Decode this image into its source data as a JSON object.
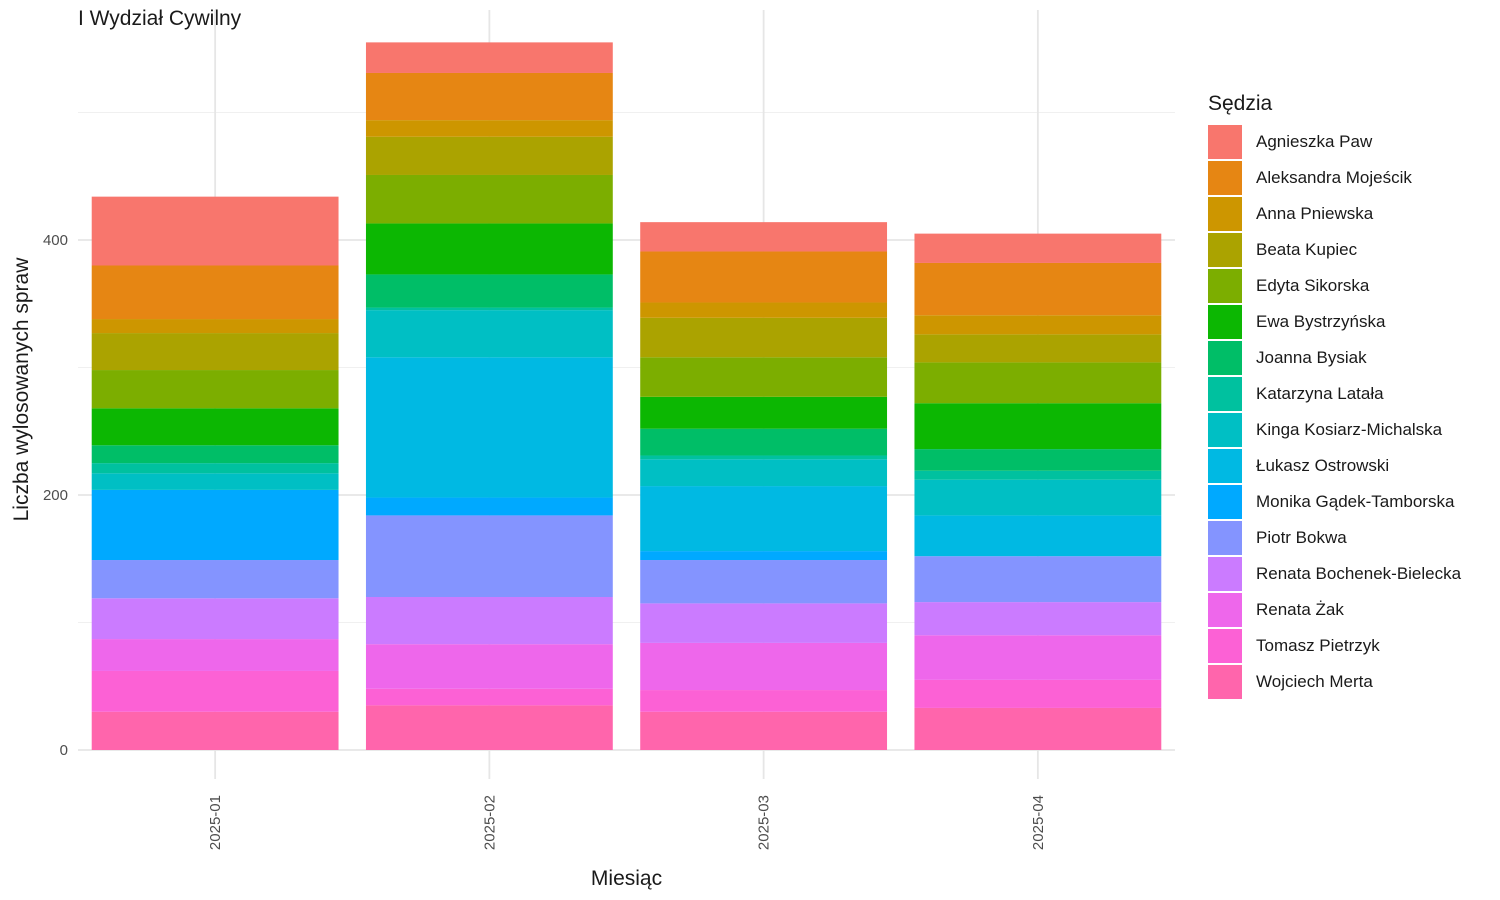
{
  "chart_data": {
    "type": "bar",
    "stacked": true,
    "title": "I Wydział Cywilny",
    "xlabel": "Miesiąc",
    "ylabel": "Liczba wylosowanych spraw",
    "ylim": [
      0,
      580
    ],
    "yticks": [
      0,
      200,
      400
    ],
    "grid": true,
    "legend_title": "Sędzia",
    "legend_position": "right",
    "categories": [
      "2025-01",
      "2025-02",
      "2025-03",
      "2025-04"
    ],
    "series": [
      {
        "name": "Wojciech Merta",
        "color": "#FF65AC",
        "values": [
          30,
          35,
          30,
          33
        ]
      },
      {
        "name": "Tomasz Pietrzyk",
        "color": "#FC61D5",
        "values": [
          32,
          13,
          17,
          22
        ]
      },
      {
        "name": "Renata Żak",
        "color": "#EE67EB",
        "values": [
          25,
          35,
          37,
          35
        ]
      },
      {
        "name": "Renata Bochenek-Bielecka",
        "color": "#CB7BFF",
        "values": [
          32,
          37,
          31,
          26
        ]
      },
      {
        "name": "Piotr Bokwa",
        "color": "#8494FF",
        "values": [
          30,
          64,
          34,
          36
        ]
      },
      {
        "name": "Monika Gądek-Tamborska",
        "color": "#00A9FF",
        "values": [
          55,
          14,
          7,
          0
        ]
      },
      {
        "name": "Łukasz Ostrowski",
        "color": "#00B9E3",
        "values": [
          0,
          110,
          51,
          32
        ]
      },
      {
        "name": "Kinga Kosiarz-Michalska",
        "color": "#00BFC4",
        "values": [
          13,
          37,
          21,
          28
        ]
      },
      {
        "name": "Katarzyna Latała",
        "color": "#00C19F",
        "values": [
          8,
          2,
          3,
          7
        ]
      },
      {
        "name": "Joanna Bysiak",
        "color": "#00BE67",
        "values": [
          14,
          26,
          21,
          17
        ]
      },
      {
        "name": "Ewa Bystrzyńska",
        "color": "#0CB702",
        "values": [
          29,
          40,
          25,
          36
        ]
      },
      {
        "name": "Edyta Sikorska",
        "color": "#7CAE00",
        "values": [
          30,
          38,
          31,
          32
        ]
      },
      {
        "name": "Beata Kupiec",
        "color": "#ABA300",
        "values": [
          29,
          30,
          31,
          22
        ]
      },
      {
        "name": "Anna Pniewska",
        "color": "#CD9600",
        "values": [
          11,
          13,
          12,
          15
        ]
      },
      {
        "name": "Aleksandra Mojeścik",
        "color": "#E68613",
        "values": [
          42,
          37,
          40,
          41
        ]
      },
      {
        "name": "Agnieszka Paw",
        "color": "#F8766D",
        "values": [
          54,
          24,
          23,
          23
        ]
      }
    ]
  }
}
